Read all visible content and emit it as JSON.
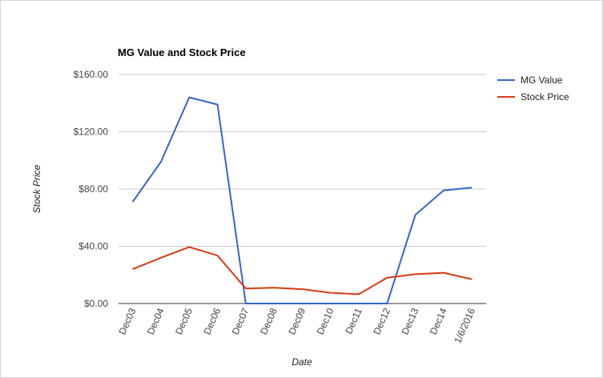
{
  "chart_data": {
    "type": "line",
    "title": "MG Value and Stock Price",
    "xlabel": "Date",
    "ylabel": "Stock Price",
    "categories": [
      "Dec03",
      "Dec04",
      "Dec05",
      "Dec06",
      "Dec07",
      "Dec08",
      "Dec09",
      "Dec10",
      "Dec11",
      "Dec12",
      "Dec13",
      "Dec14",
      "1/6/2016"
    ],
    "ylim": [
      0,
      160
    ],
    "yticks": [
      0,
      40,
      80,
      120,
      160
    ],
    "ytick_labels": [
      "$0.00",
      "$40.00",
      "$80.00",
      "$120.00",
      "$160.00"
    ],
    "grid": true,
    "legend_position": "right",
    "series": [
      {
        "name": "MG Value",
        "color": "#3366cc",
        "values": [
          71,
          99,
          144,
          139,
          0,
          0,
          0,
          0,
          0,
          0,
          62,
          79,
          81
        ]
      },
      {
        "name": "Stock Price",
        "color": "#dc3912",
        "values": [
          24,
          32,
          39.5,
          33.5,
          10.5,
          11,
          10,
          7.5,
          6.5,
          18,
          20.5,
          21.5,
          17
        ]
      }
    ]
  }
}
